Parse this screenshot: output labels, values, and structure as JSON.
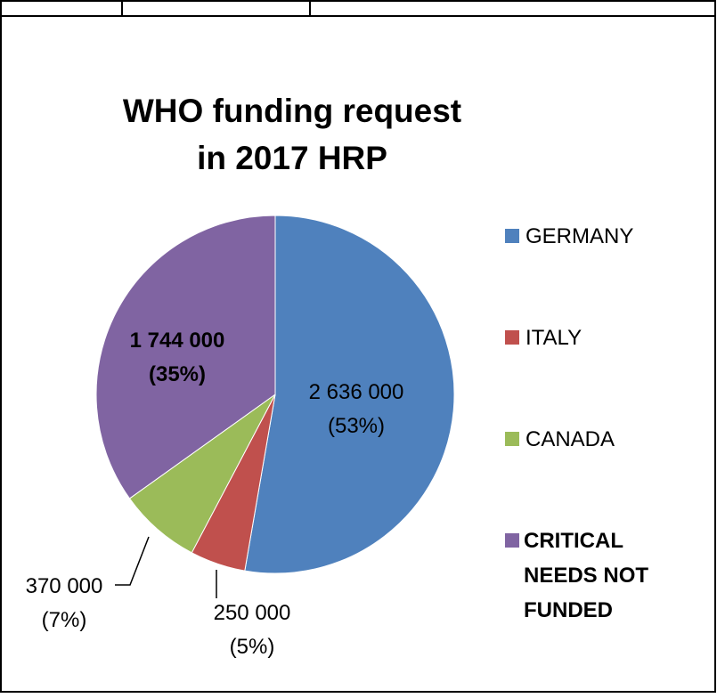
{
  "chart_data": {
    "type": "pie",
    "title_lines": [
      "WHO funding request",
      "in 2017 HRP"
    ],
    "legend_position": "right",
    "slices": [
      {
        "name": "GERMANY",
        "value": 2636000,
        "percent": 53,
        "color": "#4F81BD",
        "label_value": "2 636 000",
        "label_percent": "(53%)",
        "legend_lines": [
          "GERMANY"
        ],
        "bold": false
      },
      {
        "name": "ITALY",
        "value": 250000,
        "percent": 5,
        "color": "#C0504D",
        "label_value": "250 000",
        "label_percent": "(5%)",
        "legend_lines": [
          "ITALY"
        ],
        "bold": false
      },
      {
        "name": "CANADA",
        "value": 370000,
        "percent": 7,
        "color": "#9BBB59",
        "label_value": "370 000",
        "label_percent": "(7%)",
        "legend_lines": [
          "CANADA"
        ],
        "bold": false
      },
      {
        "name": "CRITICAL NEEDS NOT FUNDED",
        "value": 1744000,
        "percent": 35,
        "color": "#8064A2",
        "label_value": "1 744 000",
        "label_percent": "(35%)",
        "legend_lines": [
          "CRITICAL",
          "NEEDS NOT",
          "FUNDED"
        ],
        "bold": true
      }
    ]
  }
}
